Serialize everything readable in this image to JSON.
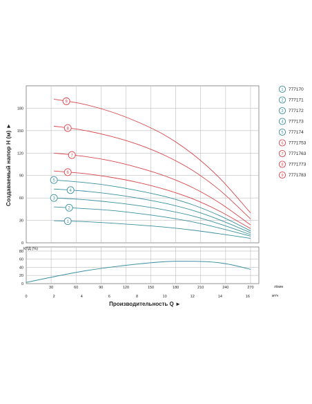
{
  "chart_data": [
    {
      "type": "line",
      "ylabel": "Создаваемый напор H (м) ►",
      "ylim": [
        0,
        210
      ],
      "yticks": [
        0,
        30,
        60,
        90,
        120,
        150,
        180
      ],
      "xlim": [
        0,
        16.8
      ],
      "grid": true,
      "legend_placement": "right",
      "colors": {
        "blue_series": "#3a8fa0",
        "red_series": "#d9444a",
        "grid": "#bdbdbd"
      },
      "series": [
        {
          "name": "777170",
          "marker": "1",
          "x": [
            2,
            4,
            6,
            8,
            10,
            12,
            14,
            16.2
          ],
          "y": [
            29.5,
            28.5,
            26.5,
            24,
            21,
            17,
            12,
            6
          ]
        },
        {
          "name": "777171",
          "marker": "2",
          "x": [
            2,
            4,
            6,
            8,
            10,
            12,
            14,
            16.2
          ],
          "y": [
            48,
            46,
            43.5,
            39.5,
            34.5,
            28,
            19.5,
            9
          ]
        },
        {
          "name": "777172",
          "marker": "3",
          "x": [
            2,
            4,
            6,
            8,
            10,
            12,
            14,
            16.2
          ],
          "y": [
            60,
            58,
            54.5,
            50,
            44,
            36,
            25,
            11
          ]
        },
        {
          "name": "777173",
          "marker": "4",
          "x": [
            2,
            4,
            6,
            8,
            10,
            12,
            14,
            16.2
          ],
          "y": [
            72,
            69.5,
            65.5,
            60,
            53,
            43.5,
            30.5,
            13.5
          ]
        },
        {
          "name": "777174",
          "marker": "5",
          "x": [
            2,
            4,
            6,
            8,
            10,
            12,
            14,
            16.2
          ],
          "y": [
            84,
            81,
            76.5,
            70,
            62,
            51,
            36,
            16
          ]
        },
        {
          "name": "7771753",
          "marker": "6",
          "x": [
            2,
            4,
            6,
            8,
            10,
            12,
            14,
            16.2
          ],
          "y": [
            96,
            93,
            88,
            81,
            71.5,
            59,
            42,
            19
          ]
        },
        {
          "name": "7771763",
          "marker": "7",
          "x": [
            2,
            4,
            6,
            8,
            10,
            12,
            14,
            16.2
          ],
          "y": [
            120,
            116,
            110,
            101,
            89.5,
            74,
            53,
            24
          ]
        },
        {
          "name": "7771773",
          "marker": "8",
          "x": [
            2,
            4,
            6,
            8,
            10,
            12,
            14,
            16.2
          ],
          "y": [
            156,
            151,
            143,
            132,
            117,
            97,
            70,
            32
          ]
        },
        {
          "name": "7771783",
          "marker": "9",
          "x": [
            2,
            4,
            6,
            8,
            10,
            12,
            14,
            16.2
          ],
          "y": [
            192,
            186,
            176,
            162,
            144,
            119,
            86,
            40
          ]
        }
      ]
    },
    {
      "type": "line",
      "ylabel": "КПД (%)",
      "ylim": [
        0,
        90
      ],
      "yticks": [
        0,
        20,
        40,
        60,
        80
      ],
      "xlim": [
        0,
        16.8
      ],
      "grid": true,
      "series": [
        {
          "x": [
            0,
            2,
            4,
            6,
            8,
            10,
            11.5,
            13,
            14,
            15,
            16.2
          ],
          "y": [
            3,
            17,
            30,
            40,
            48,
            54,
            55,
            54,
            51,
            45,
            35
          ]
        }
      ]
    }
  ],
  "x_axis": {
    "xlabel": "Производительность Q  ►",
    "unit_top": "л/мин",
    "unit_bottom": "м³/ч",
    "top_ticks": [
      {
        "label": "30",
        "m3h": 1.8
      },
      {
        "label": "60",
        "m3h": 3.6
      },
      {
        "label": "90",
        "m3h": 5.4
      },
      {
        "label": "120",
        "m3h": 7.2
      },
      {
        "label": "150",
        "m3h": 9.0
      },
      {
        "label": "180",
        "m3h": 10.8
      },
      {
        "label": "210",
        "m3h": 12.6
      },
      {
        "label": "240",
        "m3h": 14.4
      },
      {
        "label": "270",
        "m3h": 16.2
      }
    ],
    "bottom_ticks": [
      0,
      2,
      4,
      6,
      8,
      10,
      12,
      14,
      16
    ]
  }
}
